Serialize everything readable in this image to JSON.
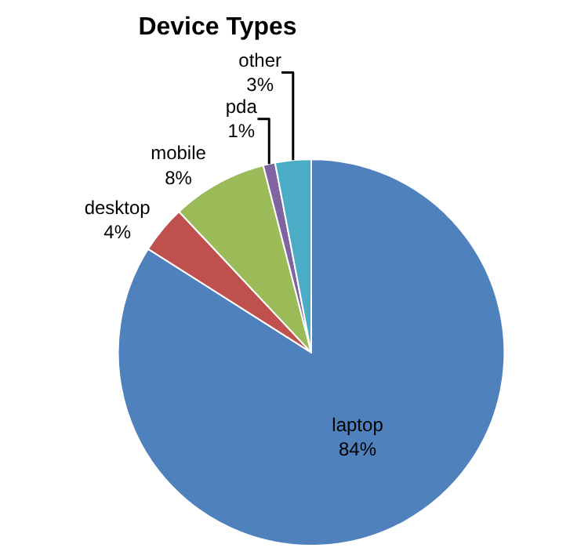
{
  "chart_data": {
    "type": "pie",
    "title": "Device Types",
    "categories": [
      "laptop",
      "desktop",
      "mobile",
      "pda",
      "other"
    ],
    "values": [
      84,
      4,
      8,
      1,
      3
    ],
    "value_labels": [
      "84%",
      "4%",
      "8%",
      "1%",
      "3%"
    ],
    "colors": [
      "#4f81bd",
      "#c0504d",
      "#9bbb59",
      "#8064a2",
      "#4bacc6"
    ],
    "legend": false
  }
}
